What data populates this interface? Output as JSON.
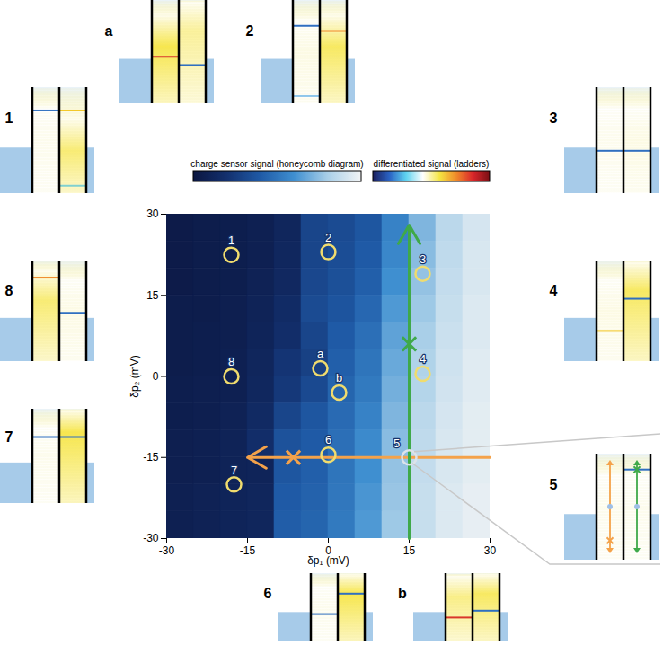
{
  "chart_data": {
    "type": "heatmap",
    "xlabel": "δp₁ (mV)",
    "ylabel": "δp₂ (mV)",
    "xlim": [
      -30,
      30
    ],
    "ylim": [
      -30,
      30
    ],
    "xticks": [
      -30,
      -15,
      0,
      15,
      30
    ],
    "yticks": [
      -30,
      -15,
      0,
      15,
      30
    ],
    "x": [
      -27.5,
      -22.5,
      -17.5,
      -12.5,
      -7.5,
      -2.5,
      2.5,
      7.5,
      12.5,
      17.5,
      22.5,
      27.5
    ],
    "y": [
      27.5,
      22.5,
      17.5,
      12.5,
      7.5,
      2.5,
      -2.5,
      -7.5,
      -12.5,
      -17.5,
      -22.5,
      -27.5
    ],
    "z": [
      [
        0.04,
        0.05,
        0.06,
        0.08,
        0.12,
        0.3,
        0.33,
        0.38,
        0.55,
        0.72,
        0.85,
        0.92
      ],
      [
        0.04,
        0.05,
        0.06,
        0.08,
        0.13,
        0.3,
        0.34,
        0.4,
        0.57,
        0.74,
        0.86,
        0.93
      ],
      [
        0.04,
        0.05,
        0.06,
        0.09,
        0.14,
        0.31,
        0.35,
        0.42,
        0.6,
        0.76,
        0.87,
        0.93
      ],
      [
        0.05,
        0.05,
        0.07,
        0.1,
        0.16,
        0.33,
        0.37,
        0.45,
        0.63,
        0.78,
        0.88,
        0.94
      ],
      [
        0.05,
        0.06,
        0.07,
        0.11,
        0.18,
        0.3,
        0.4,
        0.48,
        0.66,
        0.8,
        0.89,
        0.94
      ],
      [
        0.05,
        0.06,
        0.08,
        0.12,
        0.22,
        0.28,
        0.42,
        0.5,
        0.68,
        0.82,
        0.9,
        0.95
      ],
      [
        0.06,
        0.07,
        0.08,
        0.13,
        0.24,
        0.32,
        0.44,
        0.52,
        0.7,
        0.83,
        0.91,
        0.95
      ],
      [
        0.06,
        0.07,
        0.09,
        0.15,
        0.3,
        0.38,
        0.46,
        0.55,
        0.72,
        0.85,
        0.92,
        0.96
      ],
      [
        0.07,
        0.08,
        0.1,
        0.18,
        0.36,
        0.4,
        0.48,
        0.58,
        0.74,
        0.86,
        0.93,
        0.96
      ],
      [
        0.07,
        0.08,
        0.1,
        0.11,
        0.38,
        0.42,
        0.5,
        0.6,
        0.76,
        0.87,
        0.93,
        0.96
      ],
      [
        0.08,
        0.09,
        0.11,
        0.12,
        0.4,
        0.43,
        0.51,
        0.62,
        0.77,
        0.88,
        0.94,
        0.97
      ],
      [
        0.08,
        0.09,
        0.11,
        0.12,
        0.41,
        0.44,
        0.52,
        0.63,
        0.78,
        0.88,
        0.94,
        0.97
      ]
    ],
    "zlim": [
      0,
      1
    ],
    "colorbars": [
      {
        "label": "charge sensor signal (honeycomb diagram)",
        "colors": [
          "#0b1640",
          "#13306e",
          "#1f5aa6",
          "#3f8fd0",
          "#a9cfe8",
          "#f2f4f5"
        ]
      },
      {
        "label": "differentiated signal (ladders)",
        "colors": [
          "#1b1f5e",
          "#2a63c4",
          "#5fd3f0",
          "#ffffff",
          "#f5e542",
          "#f08a2a",
          "#d9262b",
          "#7a0f14"
        ]
      }
    ],
    "markers": [
      {
        "label": "1",
        "x": -18,
        "y": 22.5,
        "color": "#f0dc6e"
      },
      {
        "label": "2",
        "x": 0,
        "y": 23,
        "color": "#f0dc6e"
      },
      {
        "label": "3",
        "x": 17.5,
        "y": 19,
        "color": "#f0dc6e"
      },
      {
        "label": "4",
        "x": 17.5,
        "y": 0.5,
        "color": "#f0dc6e"
      },
      {
        "label": "5",
        "x": 15,
        "y": -15,
        "color": "#dde3ea"
      },
      {
        "label": "6",
        "x": 0,
        "y": -14.5,
        "color": "#f0dc6e"
      },
      {
        "label": "7",
        "x": -17.5,
        "y": -20,
        "color": "#f0dc6e"
      },
      {
        "label": "8",
        "x": -18,
        "y": 0,
        "color": "#f0dc6e"
      },
      {
        "label": "a",
        "x": -1.5,
        "y": 1.5,
        "color": "#f0dc6e"
      },
      {
        "label": "b",
        "x": 2,
        "y": -3,
        "color": "#f0dc6e"
      }
    ],
    "arrows": [
      {
        "color": "#f4a24a",
        "from": [
          30,
          -15
        ],
        "to": [
          -15,
          -15
        ],
        "cross": [
          -6.5,
          -15
        ]
      },
      {
        "color": "#3fa94a",
        "from": [
          15,
          -30
        ],
        "to": [
          15,
          28
        ],
        "cross": [
          15,
          6
        ]
      }
    ]
  },
  "insets": [
    {
      "label": "a"
    },
    {
      "label": "2"
    },
    {
      "label": "1"
    },
    {
      "label": "8"
    },
    {
      "label": "7"
    },
    {
      "label": "3"
    },
    {
      "label": "4"
    },
    {
      "label": "5"
    },
    {
      "label": "6"
    },
    {
      "label": "b"
    }
  ]
}
